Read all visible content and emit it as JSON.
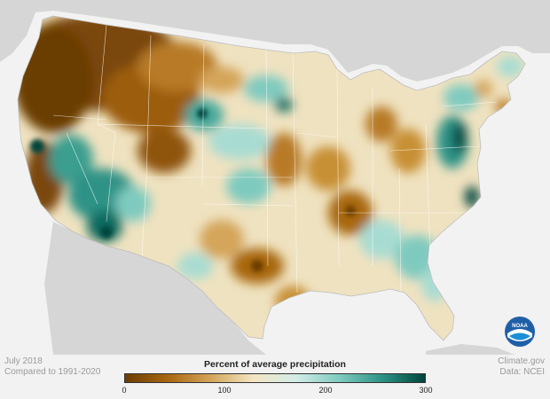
{
  "footer": {
    "date": "July 2018",
    "comparison": "Compared to 1991-2020",
    "source_site": "Climate.gov",
    "data_credit": "Data: NCEI"
  },
  "legend": {
    "title": "Percent of average precipitation",
    "ticks": [
      "0",
      "100",
      "200",
      "300"
    ],
    "min": 0,
    "max": 300,
    "colors": [
      "#6b3d05",
      "#a8670f",
      "#d4a55a",
      "#f3e6c3",
      "#d2ece8",
      "#7fcabf",
      "#2d9386",
      "#00453c"
    ]
  },
  "logo": {
    "text": "NOAA",
    "icon": "noaa-logo-icon"
  },
  "map": {
    "region": "Contiguous United States",
    "colors": {
      "background": "#f2f2f2",
      "neighbor_land": "#d6d6d6",
      "base": "#efe2c0",
      "state_border": "#ffffff"
    }
  }
}
